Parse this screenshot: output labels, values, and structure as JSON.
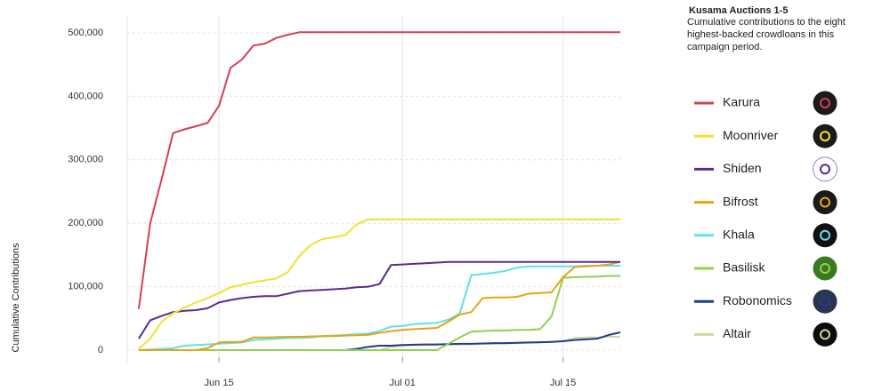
{
  "chart_data": {
    "type": "line",
    "title": "Kusama Auctions 1-5",
    "subtitle": "Cumulative contributions to the eight highest-backed crowdloans in this campaign period.",
    "y_label": "Cumulative Contributions",
    "x": [
      "Jun 08",
      "Jun 09",
      "Jun 10",
      "Jun 11",
      "Jun 12",
      "Jun 13",
      "Jun 14",
      "Jun 15",
      "Jun 16",
      "Jun 17",
      "Jun 18",
      "Jun 19",
      "Jun 20",
      "Jun 21",
      "Jun 22",
      "Jun 23",
      "Jun 24",
      "Jun 25",
      "Jun 26",
      "Jun 27",
      "Jun 28",
      "Jun 29",
      "Jun 30",
      "Jul 01",
      "Jul 02",
      "Jul 03",
      "Jul 04",
      "Jul 05",
      "Jul 06",
      "Jul 07",
      "Jul 08",
      "Jul 09",
      "Jul 10",
      "Jul 11",
      "Jul 12",
      "Jul 13",
      "Jul 14",
      "Jul 15",
      "Jul 16",
      "Jul 17",
      "Jul 18",
      "Jul 19",
      "Jul 20"
    ],
    "xlim": [
      "Jun 07",
      "Jul 20"
    ],
    "xticks": [
      "Jun 15",
      "Jul 01",
      "Jul 15"
    ],
    "ylim": [
      0,
      500000
    ],
    "yticks": [
      0,
      {
        "value": 100000,
        "label": "100,000"
      },
      {
        "value": 200000,
        "label": "200,000"
      },
      {
        "value": 300000,
        "label": "300,000"
      },
      {
        "value": 400000,
        "label": "400,000"
      },
      {
        "value": 500000,
        "label": "500,000"
      }
    ],
    "grid": true,
    "series": [
      {
        "name": "Karura",
        "color": "#d63f55",
        "values": [
          65000,
          200000,
          270000,
          342000,
          348000,
          353000,
          358000,
          385000,
          445000,
          458000,
          480000,
          483000,
          492000,
          497000,
          501000,
          501000,
          501000,
          501000,
          501000,
          501000,
          501000,
          501000,
          501000,
          501000,
          501000,
          501000,
          501000,
          501000,
          501000,
          501000,
          501000,
          501000,
          501000,
          501000,
          501000,
          501000,
          501000,
          501000,
          501000,
          501000,
          501000,
          501000,
          501000
        ]
      },
      {
        "name": "Moonriver",
        "color": "#f0e22e",
        "values": [
          2000,
          18000,
          45000,
          58000,
          67000,
          75000,
          82000,
          90000,
          99000,
          103000,
          107000,
          110000,
          113000,
          123000,
          148000,
          166000,
          175000,
          178000,
          181000,
          198000,
          206000,
          206000,
          206000,
          206000,
          206000,
          206000,
          206000,
          206000,
          206000,
          206000,
          206000,
          206000,
          206000,
          206000,
          206000,
          206000,
          206000,
          206000,
          206000,
          206000,
          206000,
          206000,
          206000
        ]
      },
      {
        "name": "Shiden",
        "color": "#5b2b8e",
        "values": [
          18000,
          47000,
          54000,
          60000,
          62000,
          63000,
          66000,
          75000,
          79000,
          82000,
          84000,
          85000,
          85000,
          89000,
          93000,
          94000,
          95000,
          96000,
          97000,
          99000,
          100000,
          104000,
          134000,
          135000,
          136000,
          137000,
          138000,
          139000,
          139000,
          139000,
          139000,
          139000,
          139000,
          139000,
          139000,
          139000,
          139000,
          139000,
          139000,
          139000,
          139000,
          139000,
          139000
        ]
      },
      {
        "name": "Bifrost",
        "color": "#e8a414",
        "values": [
          0,
          0,
          0,
          0,
          0,
          0,
          3000,
          12000,
          13000,
          13000,
          20000,
          20000,
          20500,
          21000,
          21000,
          21500,
          22000,
          22000,
          23000,
          23500,
          24000,
          27000,
          30000,
          32000,
          33000,
          34000,
          35000,
          45000,
          56000,
          60000,
          82000,
          83000,
          83000,
          84000,
          89000,
          90000,
          91000,
          115000,
          131000,
          132000,
          133000,
          135000,
          139000
        ]
      },
      {
        "name": "Khala",
        "color": "#5fe1ea",
        "values": [
          0,
          1000,
          2000,
          3000,
          7000,
          8000,
          9000,
          10000,
          11000,
          12000,
          16000,
          17000,
          18000,
          19000,
          19500,
          20000,
          22000,
          23000,
          24000,
          25000,
          26000,
          30000,
          37000,
          38000,
          41000,
          42000,
          43000,
          48000,
          58000,
          118000,
          120000,
          122000,
          125000,
          130000,
          132000,
          132000,
          132000,
          132000,
          132000,
          133000,
          133000,
          133000,
          133000
        ]
      },
      {
        "name": "Basilisk",
        "color": "#8fd14f",
        "values": [
          0,
          0,
          0,
          0,
          0,
          0,
          0,
          0,
          0,
          0,
          0,
          0,
          0,
          0,
          0,
          0,
          0,
          0,
          0,
          0,
          0,
          0,
          0,
          0,
          0,
          0,
          0,
          10000,
          20000,
          29000,
          30000,
          31000,
          31000,
          32000,
          32000,
          33000,
          53000,
          114000,
          115000,
          115500,
          116000,
          117000,
          117000
        ]
      },
      {
        "name": "Robonomics",
        "color": "#1f3c8f",
        "values": [
          0,
          0,
          0,
          0,
          0,
          0,
          0,
          0,
          0,
          0,
          0,
          0,
          0,
          0,
          0,
          0,
          0,
          0,
          0,
          2000,
          5000,
          7000,
          7000,
          8000,
          8500,
          9000,
          9000,
          9500,
          10000,
          10000,
          10500,
          11000,
          11000,
          11500,
          12000,
          12500,
          13000,
          14000,
          16000,
          17000,
          18000,
          24000,
          28000
        ]
      },
      {
        "name": "Altair",
        "color": "#d6d39c",
        "values": [
          0,
          0,
          0,
          0,
          0,
          0,
          0,
          0,
          0,
          0,
          0,
          0,
          0,
          0,
          0,
          0,
          0,
          0,
          0,
          0,
          0,
          0,
          5000,
          7000,
          8000,
          8000,
          8500,
          9000,
          9000,
          9500,
          10000,
          10000,
          10500,
          11000,
          11500,
          12000,
          13000,
          14000,
          19000,
          20000,
          20000,
          21000,
          21000
        ]
      }
    ]
  }
}
